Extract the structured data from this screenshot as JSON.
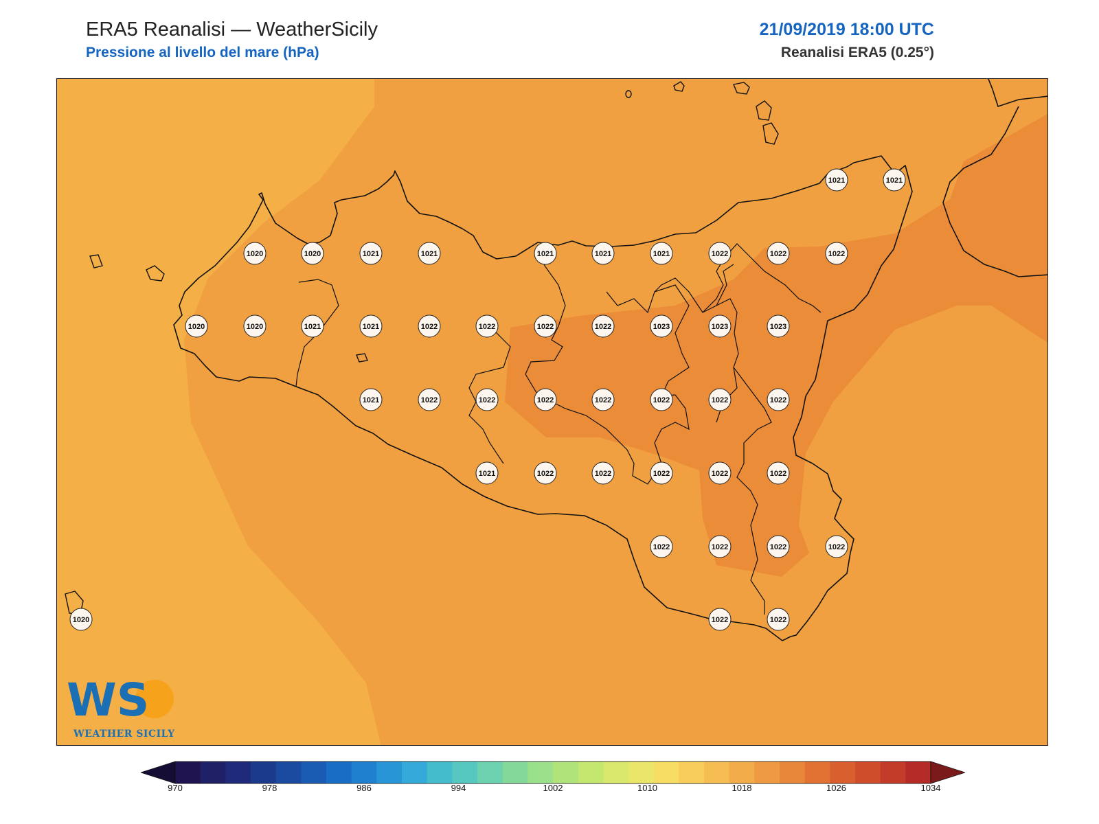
{
  "header": {
    "title": "ERA5 Reanalisi — WeatherSicily",
    "subtitle": "Pressione al livello del mare (hPa)",
    "datetime": "21/09/2019 18:00 UTC",
    "source": "Reanalisi ERA5 (0.25°)"
  },
  "logo": {
    "letters": "WS",
    "name": "WEATHER SICILY"
  },
  "map": {
    "region": "Sicily",
    "variable": "Mean sea level pressure",
    "unit": "hPa",
    "background_color": "#f0a040",
    "fill_colors": {
      "1018-1020": "#f4b046",
      "1020-1022": "#f0a040",
      "1022-1024": "#eb8c39"
    },
    "station_values": [
      1021,
      1021,
      1020,
      1020,
      1021,
      1021,
      1021,
      1021,
      1021,
      1022,
      1022,
      1022,
      1020,
      1020,
      1021,
      1021,
      1022,
      1022,
      1022,
      1022,
      1023,
      1023,
      1023,
      1021,
      1022,
      1022,
      1022,
      1022,
      1022,
      1022,
      1022,
      1021,
      1022,
      1022,
      1022,
      1022,
      1022,
      1022,
      1022,
      1022,
      1022,
      1020,
      1022,
      1022
    ]
  },
  "colorbar": {
    "min": 970,
    "max": 1034,
    "step": 2,
    "tick_labels": [
      "970",
      "978",
      "986",
      "994",
      "1002",
      "1010",
      "1018",
      "1026",
      "1034"
    ],
    "colors": [
      "#1f1450",
      "#202066",
      "#1f2b7a",
      "#1c3a8c",
      "#1a4ba0",
      "#1a5cb3",
      "#1a6dc4",
      "#1f80cf",
      "#2896d6",
      "#33aad9",
      "#44bccc",
      "#57c8c0",
      "#6dd2b0",
      "#84d99a",
      "#9be08a",
      "#b0e47a",
      "#c4e76f",
      "#d7e86c",
      "#eae66a",
      "#f7dd63",
      "#f9cd5b",
      "#f6bd52",
      "#f2ac4a",
      "#ee9a42",
      "#e8863a",
      "#e27233",
      "#da5f2e",
      "#d04d2b",
      "#c33b29",
      "#b42b28"
    ],
    "under_color": "#150d33",
    "over_color": "#7a1a1a"
  }
}
